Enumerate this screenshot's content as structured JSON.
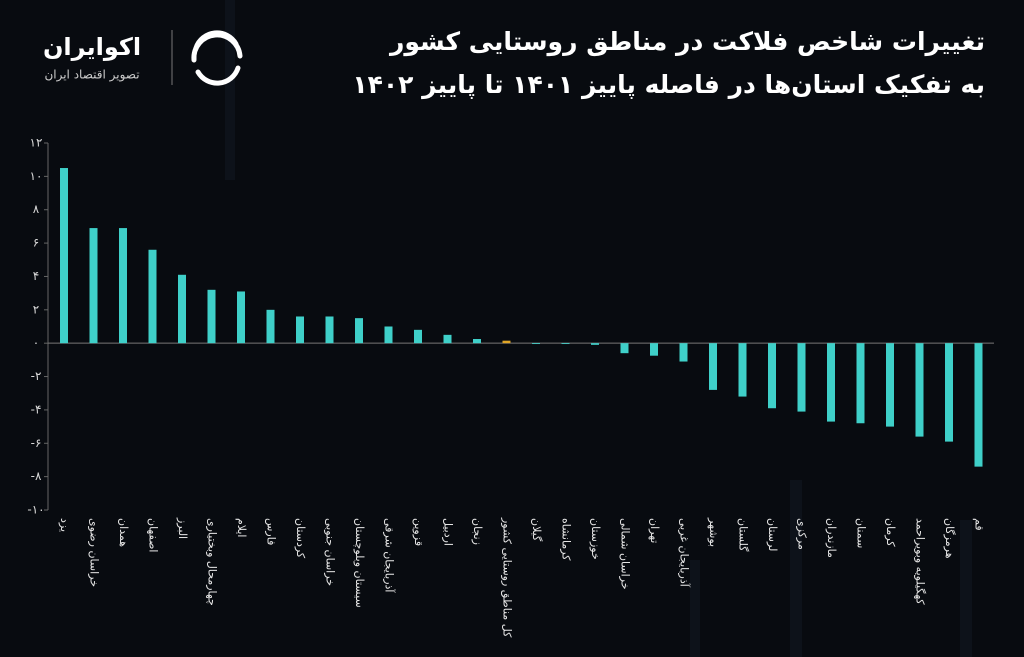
{
  "header": {
    "brand": "اکوایران",
    "tagline": "تصویر اقتصاد ایران"
  },
  "chart_data": {
    "type": "bar",
    "title": "تغییرات شاخص فلاکت در مناطق روستایی کشور",
    "subtitle": "به تفکیک استان‌ها در فاصله پاییز ۱۴۰۱ تا پاییز ۱۴۰۲",
    "categories": [
      "یزد",
      "خراسان رضوی",
      "همدان",
      "اصفهان",
      "البرز",
      "چهارمحال وبختیاری",
      "ایلام",
      "فارس",
      "کردستان",
      "خراسان جنوبی",
      "سیستان وبلوچستان",
      "آذربایجان شرقی",
      "قزوین",
      "اردبیل",
      "زنجان",
      "کل مناطق روستایی کشور",
      "گیلان",
      "کرمانشاه",
      "خوزستان",
      "خراسان شمالی",
      "تهران",
      "آذربایجان غربی",
      "بوشهر",
      "گلستان",
      "لرستان",
      "مرکزی",
      "مازندران",
      "سمنان",
      "کرمان",
      "کهگیلویه وبویراحمد",
      "هرمزگان",
      "قم"
    ],
    "values": [
      10.5,
      6.9,
      6.9,
      5.6,
      4.1,
      3.2,
      3.1,
      2.0,
      1.6,
      1.6,
      1.5,
      1.0,
      0.8,
      0.5,
      0.25,
      0.15,
      -0.05,
      -0.05,
      -0.1,
      -0.6,
      -0.75,
      -1.1,
      -2.8,
      -3.2,
      -3.9,
      -4.1,
      -4.7,
      -4.8,
      -5.0,
      -5.6,
      -5.9,
      -7.4
    ],
    "color": "#3fd0c9",
    "highlight": {
      "index": 15,
      "color": "#e0a526"
    },
    "ylim": [
      -10,
      12
    ],
    "yticks": [
      {
        "value": 12,
        "label": "۱۲"
      },
      {
        "value": 10,
        "label": "۱۰"
      },
      {
        "value": 8,
        "label": "۸"
      },
      {
        "value": 6,
        "label": "۶"
      },
      {
        "value": 4,
        "label": "۴"
      },
      {
        "value": 2,
        "label": "۲"
      },
      {
        "value": 0,
        "label": "۰"
      },
      {
        "value": -2,
        "label": "-۲"
      },
      {
        "value": -4,
        "label": "-۴"
      },
      {
        "value": -6,
        "label": "-۶"
      },
      {
        "value": -8,
        "label": "-۸"
      },
      {
        "value": -10,
        "label": "-۱۰"
      }
    ]
  }
}
